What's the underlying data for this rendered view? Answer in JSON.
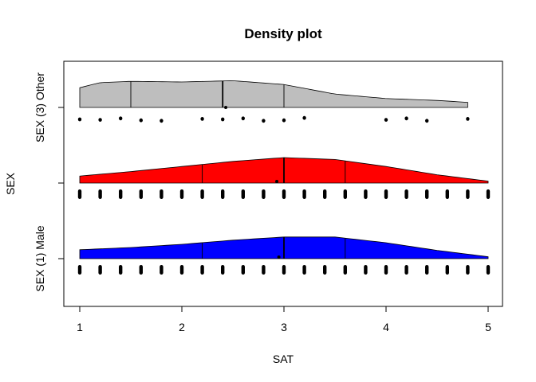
{
  "chart_data": {
    "type": "density",
    "title": "Density plot",
    "xlabel": "SAT",
    "ylabel": "SEX",
    "xlim": [
      1,
      5
    ],
    "x_ticks": [
      "1",
      "2",
      "3",
      "4",
      "5"
    ],
    "y_ticks": [
      "SEX (1) Male",
      "",
      "SEX (3) Other"
    ],
    "grid": false,
    "series": [
      {
        "name": "SEX (1) Male",
        "color": "#0000ff",
        "density_x": [
          1.0,
          1.5,
          2.0,
          2.5,
          3.0,
          3.5,
          4.0,
          4.5,
          5.0
        ],
        "density_y": [
          0.28,
          0.35,
          0.45,
          0.58,
          0.68,
          0.68,
          0.5,
          0.26,
          0.06
        ],
        "quantiles": [
          2.2,
          3.0,
          3.6
        ],
        "median_marker": 2.95,
        "points": [
          1.0,
          1.2,
          1.4,
          1.6,
          1.8,
          2.0,
          2.2,
          2.4,
          2.6,
          2.8,
          3.0,
          3.2,
          3.4,
          3.6,
          3.8,
          4.0,
          4.2,
          4.4,
          4.6,
          4.8,
          5.0
        ]
      },
      {
        "name": "",
        "color": "#ff0000",
        "density_x": [
          1.0,
          1.5,
          2.0,
          2.5,
          3.0,
          3.5,
          4.0,
          4.5,
          5.0
        ],
        "density_y": [
          0.22,
          0.36,
          0.52,
          0.68,
          0.8,
          0.74,
          0.52,
          0.26,
          0.06
        ],
        "quantiles": [
          2.2,
          3.0,
          3.6
        ],
        "median_marker": 2.93,
        "points": [
          1.0,
          1.2,
          1.4,
          1.6,
          1.8,
          2.0,
          2.2,
          2.4,
          2.6,
          2.8,
          3.0,
          3.2,
          3.4,
          3.6,
          3.8,
          4.0,
          4.2,
          4.4,
          4.6,
          4.8,
          5.0
        ]
      },
      {
        "name": "SEX (3) Other",
        "color": "#bebebe",
        "density_x": [
          1.0,
          1.2,
          1.5,
          2.0,
          2.5,
          3.0,
          3.5,
          4.0,
          4.5,
          4.8
        ],
        "density_y": [
          0.62,
          0.78,
          0.82,
          0.8,
          0.84,
          0.72,
          0.42,
          0.28,
          0.22,
          0.16
        ],
        "quantiles": [
          1.5,
          2.4,
          3.0
        ],
        "median_marker": 2.43,
        "points": [
          1.0,
          1.2,
          1.4,
          1.6,
          1.8,
          2.2,
          2.4,
          2.6,
          2.8,
          3.0,
          3.2,
          4.0,
          4.2,
          4.4,
          4.8
        ]
      }
    ]
  }
}
